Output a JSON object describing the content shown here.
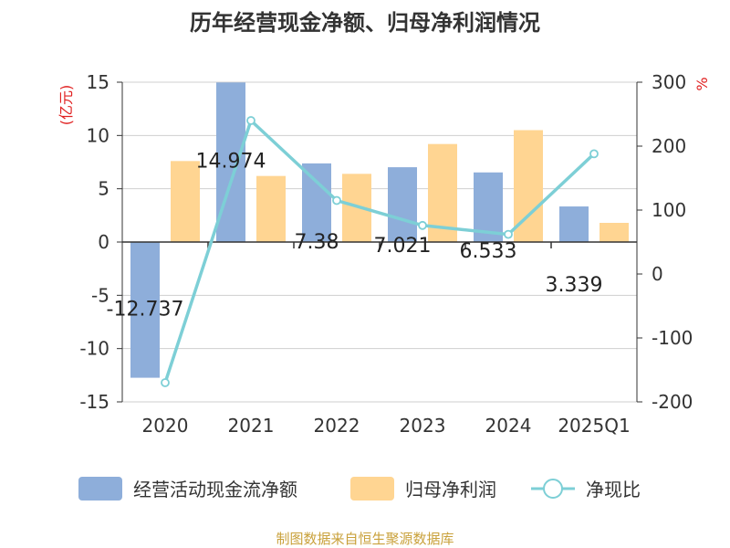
{
  "chart_data": {
    "type": "bar+line",
    "title": "历年经营现金净额、归母净利润情况",
    "categories": [
      "2020",
      "2021",
      "2022",
      "2023",
      "2024",
      "2025Q1"
    ],
    "series": [
      {
        "name": "经营活动现金流净额",
        "type": "bar",
        "axis": "left",
        "values": [
          -12.737,
          14.974,
          7.38,
          7.021,
          6.533,
          3.339
        ],
        "color": "#8EAEDA",
        "labels": [
          "-12.737",
          "14.974",
          "7.38",
          "7.021",
          "6.533",
          "3.339"
        ]
      },
      {
        "name": "归母净利润",
        "type": "bar",
        "axis": "left",
        "values": [
          7.6,
          6.2,
          6.4,
          9.2,
          10.5,
          1.8
        ],
        "color": "#FFD592"
      },
      {
        "name": "净现比",
        "type": "line",
        "axis": "right",
        "values": [
          -170,
          240,
          115,
          76,
          62,
          188
        ],
        "color": "#7DCFD6"
      }
    ],
    "left_axis": {
      "label": "(亿元)",
      "ylim": [
        -15,
        15
      ],
      "ticks": [
        15,
        10,
        5,
        0,
        -5,
        -10,
        -15
      ],
      "tick_labels": [
        "15",
        "10",
        "5",
        "0",
        "-5",
        "-10",
        "-15"
      ]
    },
    "right_axis": {
      "label": "%",
      "ylim": [
        -200,
        300
      ],
      "ticks": [
        300,
        200,
        100,
        0,
        -100,
        -200
      ],
      "tick_labels": [
        "300",
        "200",
        "100",
        "0",
        "-100",
        "-200"
      ]
    },
    "grid": true,
    "legend_position": "bottom",
    "source": "制图数据来自恒生聚源数据库"
  }
}
